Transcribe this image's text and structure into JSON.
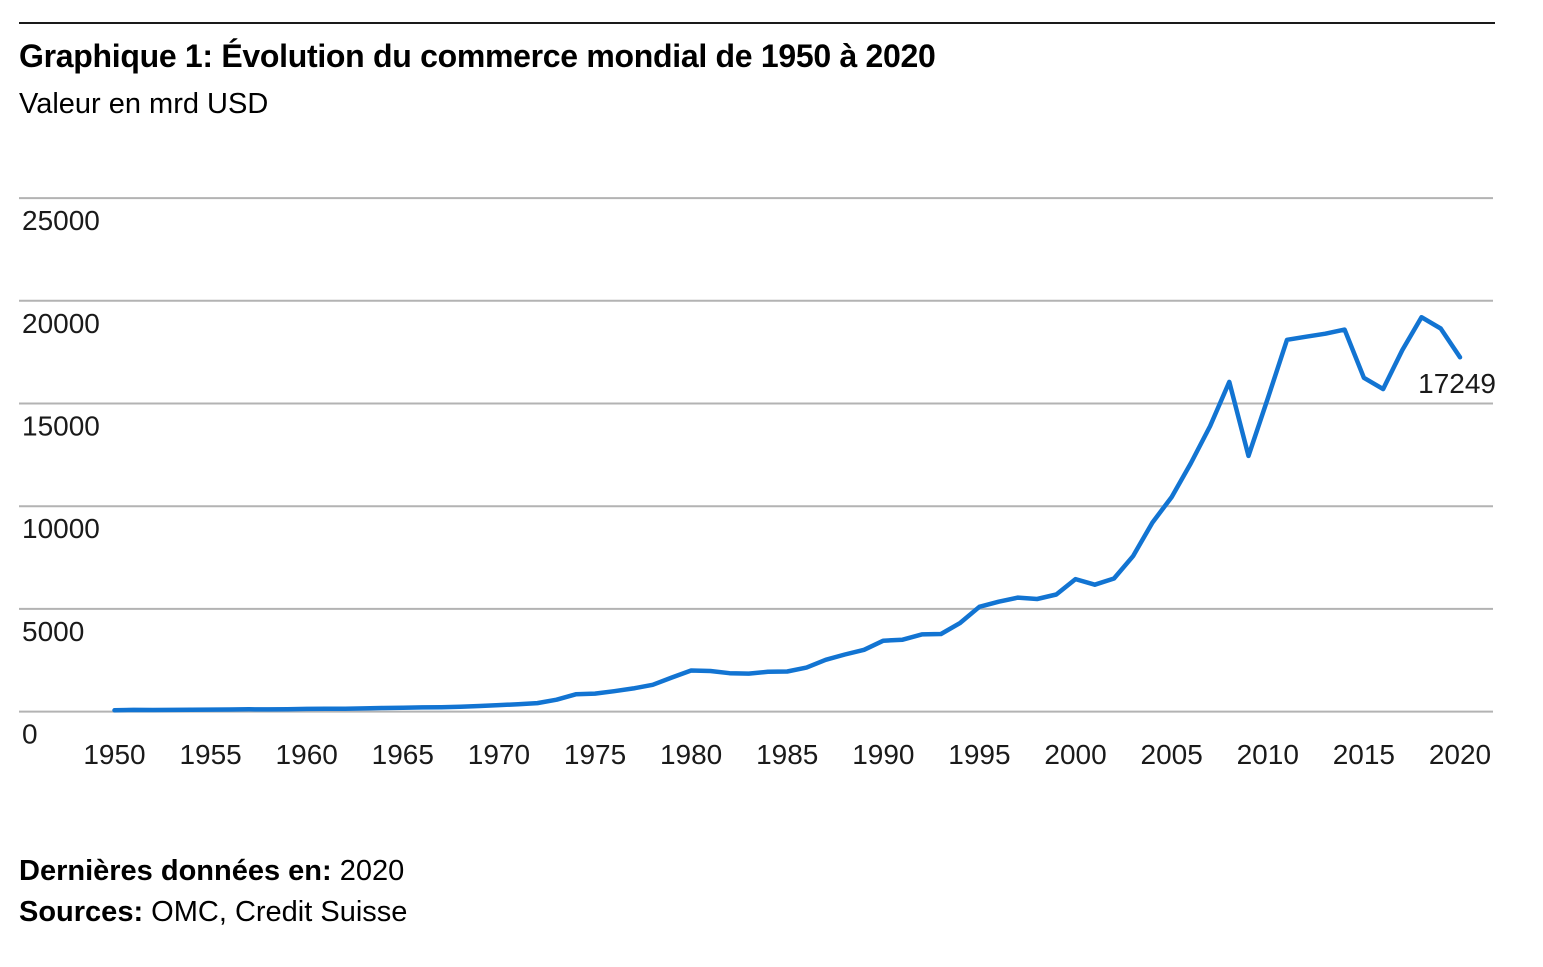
{
  "page": {
    "title": "Graphique 1: Évolution du commerce mondial de 1950 à 2020",
    "subtitle": "Valeur en mrd USD",
    "footer": {
      "last_data_label": "Dernières données en:",
      "last_data_value": "2020",
      "sources_label": "Sources:",
      "sources_value": "OMC, Credit Suisse"
    }
  },
  "chart_data": {
    "type": "line",
    "title": "Graphique 1: Évolution du commerce mondial de 1950 à 2020",
    "ylabel": "Valeur en mrd USD",
    "xlabel": "",
    "series_name": "Commerce mondial (mrd USD)",
    "x": [
      1950,
      1951,
      1952,
      1953,
      1954,
      1955,
      1956,
      1957,
      1958,
      1959,
      1960,
      1961,
      1962,
      1963,
      1964,
      1965,
      1966,
      1967,
      1968,
      1969,
      1970,
      1971,
      1972,
      1973,
      1974,
      1975,
      1976,
      1977,
      1978,
      1979,
      1980,
      1981,
      1982,
      1983,
      1984,
      1985,
      1986,
      1987,
      1988,
      1989,
      1990,
      1991,
      1992,
      1993,
      1994,
      1995,
      1996,
      1997,
      1998,
      1999,
      2000,
      2001,
      2002,
      2003,
      2004,
      2005,
      2006,
      2007,
      2008,
      2009,
      2010,
      2011,
      2012,
      2013,
      2014,
      2015,
      2016,
      2017,
      2018,
      2019,
      2020
    ],
    "values": [
      62,
      82,
      80,
      82,
      86,
      95,
      104,
      112,
      108,
      116,
      130,
      136,
      143,
      155,
      173,
      190,
      206,
      216,
      240,
      274,
      318,
      354,
      415,
      579,
      840,
      877,
      991,
      1128,
      1303,
      1659,
      2000,
      1978,
      1870,
      1850,
      1940,
      1950,
      2140,
      2520,
      2780,
      3010,
      3450,
      3500,
      3760,
      3780,
      4320,
      5100,
      5350,
      5550,
      5480,
      5700,
      6450,
      6180,
      6480,
      7580,
      9200,
      10450,
      12100,
      13900,
      16050,
      12450,
      15250,
      18100,
      18250,
      18400,
      18600,
      16250,
      15700,
      17600,
      19200,
      18650,
      17249
    ],
    "xticks": [
      1950,
      1955,
      1960,
      1965,
      1970,
      1975,
      1980,
      1985,
      1990,
      1995,
      2000,
      2005,
      2010,
      2015,
      2020
    ],
    "yticks": [
      0,
      5000,
      10000,
      15000,
      20000,
      25000
    ],
    "ylim": [
      0,
      25000
    ],
    "xlim": [
      1950,
      2020
    ],
    "grid": "horizontal",
    "legend": "none",
    "line_color": "#1274d2",
    "gridline_color": "#b3b3b3",
    "tick_color": "#1a1a1a",
    "end_label": "17249"
  }
}
